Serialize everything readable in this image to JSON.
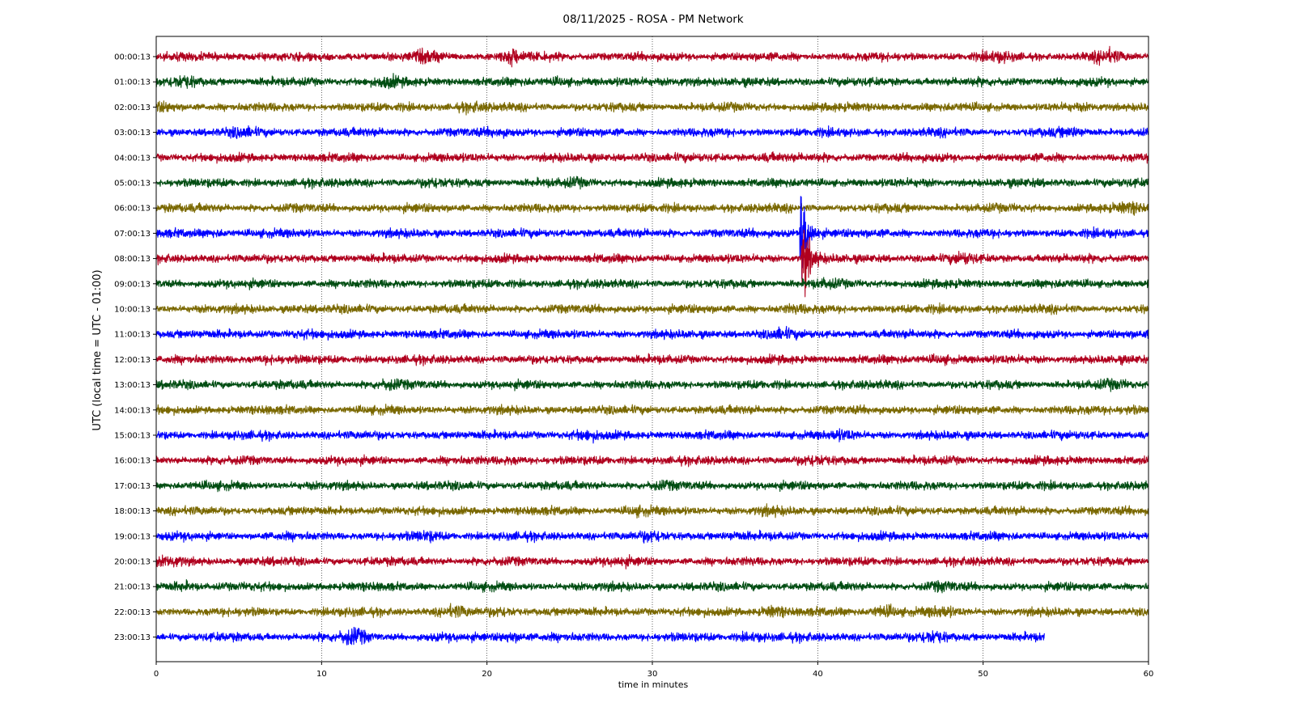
{
  "chart_data": {
    "type": "line",
    "title": "08/11/2025 - ROSA - PM Network",
    "xlabel": "time in minutes",
    "ylabel": "UTC (local time = UTC - 01:00)",
    "xlim": [
      0,
      60
    ],
    "xticks": [
      0,
      10,
      20,
      30,
      40,
      50,
      60
    ],
    "grid": "vertical dotted lines at x ticks",
    "colors": [
      "#b0001e",
      "#004d12",
      "#7a6800",
      "#0000ff"
    ],
    "series": [
      {
        "label": "00:00:13",
        "x_end": 60,
        "bursts": [
          [
            16.5,
            1.8
          ],
          [
            21.5,
            2.0
          ],
          [
            57.5,
            1.8
          ],
          [
            51,
            1.4
          ]
        ]
      },
      {
        "label": "01:00:13",
        "x_end": 60,
        "bursts": [
          [
            1.7,
            1.8
          ],
          [
            14,
            1.6
          ],
          [
            24.5,
            1.5
          ],
          [
            32,
            1.5
          ]
        ]
      },
      {
        "label": "02:00:13",
        "x_end": 60,
        "bursts": [
          [
            0.5,
            1.4
          ],
          [
            19,
            1.5
          ],
          [
            59.5,
            1.3
          ]
        ]
      },
      {
        "label": "03:00:13",
        "x_end": 60,
        "bursts": [
          [
            5.2,
            1.5
          ],
          [
            20.8,
            1.4
          ],
          [
            55.5,
            1.4
          ]
        ]
      },
      {
        "label": "04:00:13",
        "x_end": 60,
        "bursts": [
          [
            37,
            1.4
          ],
          [
            29.5,
            1.3
          ]
        ]
      },
      {
        "label": "05:00:13",
        "x_end": 60,
        "bursts": [
          [
            16.8,
            1.4
          ],
          [
            25.5,
            1.4
          ]
        ]
      },
      {
        "label": "06:00:13",
        "x_end": 60,
        "bursts": [
          [
            59,
            1.6
          ]
        ]
      },
      {
        "label": "07:00:13",
        "x_end": 60,
        "bursts": [
          [
            3.7,
            1.4
          ],
          [
            39,
            6.0
          ]
        ]
      },
      {
        "label": "08:00:13",
        "x_end": 60,
        "bursts": [
          [
            39.1,
            5.0
          ],
          [
            48.8,
            1.6
          ]
        ]
      },
      {
        "label": "09:00:13",
        "x_end": 60,
        "bursts": [
          [
            40.5,
            1.3
          ]
        ]
      },
      {
        "label": "10:00:13",
        "x_end": 60,
        "bursts": [
          [
            8.5,
            1.3
          ],
          [
            38.5,
            1.3
          ]
        ]
      },
      {
        "label": "11:00:13",
        "x_end": 60,
        "bursts": [
          [
            8.8,
            1.3
          ],
          [
            37.7,
            1.6
          ]
        ]
      },
      {
        "label": "12:00:13",
        "x_end": 60,
        "bursts": [
          [
            6.8,
            1.5
          ],
          [
            47.5,
            1.6
          ]
        ]
      },
      {
        "label": "13:00:13",
        "x_end": 60,
        "bursts": [
          [
            14,
            1.5
          ],
          [
            58,
            1.4
          ]
        ]
      },
      {
        "label": "14:00:13",
        "x_end": 60,
        "bursts": [
          [
            59,
            1.6
          ]
        ]
      },
      {
        "label": "15:00:13",
        "x_end": 60,
        "bursts": [
          [
            26,
            1.5
          ],
          [
            41.5,
            1.5
          ]
        ]
      },
      {
        "label": "16:00:13",
        "x_end": 60,
        "bursts": [
          [
            21.5,
            1.4
          ],
          [
            39.8,
            1.5
          ]
        ]
      },
      {
        "label": "17:00:13",
        "x_end": 60,
        "bursts": [
          [
            30.5,
            1.3
          ]
        ]
      },
      {
        "label": "18:00:13",
        "x_end": 60,
        "bursts": [
          [
            29,
            1.4
          ],
          [
            37,
            1.3
          ]
        ]
      },
      {
        "label": "19:00:13",
        "x_end": 60,
        "bursts": [
          [
            16.5,
            1.5
          ],
          [
            30,
            1.6
          ],
          [
            35,
            1.3
          ]
        ]
      },
      {
        "label": "20:00:13",
        "x_end": 60,
        "bursts": [
          [
            1.0,
            1.5
          ],
          [
            28,
            1.3
          ]
        ]
      },
      {
        "label": "21:00:13",
        "x_end": 60,
        "bursts": [
          [
            1.7,
            1.6
          ],
          [
            47.5,
            1.4
          ]
        ]
      },
      {
        "label": "22:00:13",
        "x_end": 60,
        "bursts": [
          [
            18,
            1.7
          ],
          [
            21,
            1.6
          ],
          [
            37.3,
            2.0
          ],
          [
            44,
            2.2
          ],
          [
            47.5,
            1.6
          ]
        ]
      },
      {
        "label": "23:00:13",
        "x_end": 53.7,
        "bursts": [
          [
            12,
            2.2
          ],
          [
            21.5,
            2.0
          ],
          [
            36,
            1.6
          ],
          [
            47,
            1.8
          ]
        ]
      }
    ]
  }
}
